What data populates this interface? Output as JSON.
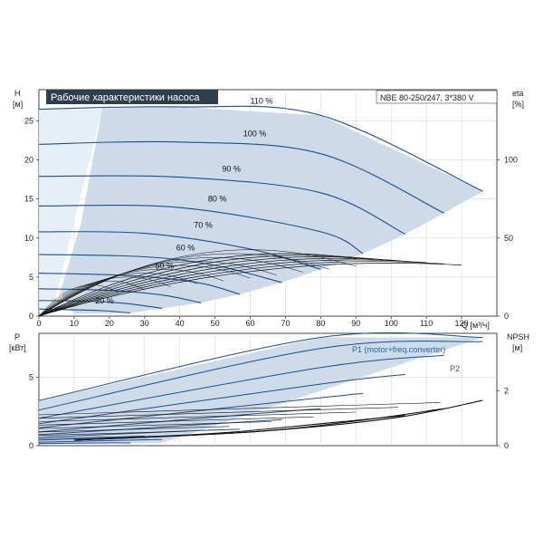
{
  "header": {
    "title": "Рабочие характеристики насоса",
    "model": "NBE 80-250/247, 3*380 V"
  },
  "colors": {
    "curve": "#1f4e8c",
    "band": "#c9d8e8",
    "band_light": "#e3edf7",
    "frame": "#444444",
    "title_bg": "#2f3e4f",
    "label": "#2a5ea8"
  },
  "chart_data": [
    {
      "type": "line",
      "name": "head",
      "xlabel": "Q [м³/ч]",
      "ylabel_line1": "H",
      "ylabel_line2": "[м]",
      "y2label_line1": "eta",
      "y2label_line2": "[%]",
      "xlim": [
        0,
        130
      ],
      "ylim": [
        0,
        29
      ],
      "y2lim": [
        0,
        145
      ],
      "xticks": [
        0,
        10,
        20,
        30,
        40,
        50,
        60,
        70,
        80,
        90,
        100,
        110,
        120
      ],
      "yticks": [
        0,
        5,
        10,
        15,
        20,
        25
      ],
      "y2ticks": [
        0,
        50,
        100
      ],
      "grid": true,
      "speed_curves": [
        {
          "label": "110 %",
          "label_xy": [
            60,
            27.2
          ],
          "x": [
            0,
            40,
            80,
            126
          ],
          "y": [
            26.5,
            26.8,
            25.7,
            16
          ]
        },
        {
          "label": "100 %",
          "label_xy": [
            58,
            23.0
          ],
          "x": [
            0,
            40,
            80,
            115
          ],
          "y": [
            22.0,
            22.3,
            20.8,
            13.2
          ]
        },
        {
          "label": "90 %",
          "label_xy": [
            52,
            18.5
          ],
          "x": [
            0,
            40,
            80,
            104
          ],
          "y": [
            17.9,
            17.8,
            15.8,
            10.5
          ]
        },
        {
          "label": "80 %",
          "label_xy": [
            48,
            14.7
          ],
          "x": [
            0,
            40,
            80,
            92
          ],
          "y": [
            14.1,
            13.9,
            10.8,
            8.0
          ]
        },
        {
          "label": "70 %",
          "label_xy": [
            44,
            11.3
          ],
          "x": [
            0,
            30,
            60,
            80
          ],
          "y": [
            10.8,
            10.6,
            8.6,
            6.0
          ]
        },
        {
          "label": "60 %",
          "label_xy": [
            39,
            8.4
          ],
          "x": [
            0,
            30,
            50,
            69
          ],
          "y": [
            7.9,
            7.6,
            6.5,
            4.3
          ]
        },
        {
          "label": "50 %",
          "label_xy": [
            33,
            6.1
          ],
          "x": [
            0,
            25,
            45,
            57
          ],
          "y": [
            5.5,
            5.2,
            4.3,
            2.8
          ]
        },
        {
          "label": "",
          "label_xy": null,
          "x": [
            0,
            20,
            35,
            46
          ],
          "y": [
            3.5,
            3.3,
            2.7,
            1.7
          ]
        },
        {
          "label": "",
          "label_xy": null,
          "x": [
            0,
            15,
            25,
            35
          ],
          "y": [
            2.0,
            1.9,
            1.6,
            1.0
          ]
        },
        {
          "label": "20 %",
          "label_xy": [
            16,
            1.6
          ],
          "x": [
            0,
            10,
            18,
            26
          ],
          "y": [
            0.9,
            0.8,
            0.7,
            0.4
          ]
        }
      ],
      "eta_curves_max": [
        {
          "peak_x": 70,
          "peak_eta": 40
        },
        {
          "peak_x": 75,
          "peak_eta": 39
        },
        {
          "peak_x": 80,
          "peak_eta": 38
        },
        {
          "peak_x": 85,
          "peak_eta": 37
        },
        {
          "peak_x": 90,
          "peak_eta": 36
        },
        {
          "peak_x": 95,
          "peak_eta": 35
        },
        {
          "peak_x": 100,
          "peak_eta": 34
        }
      ]
    },
    {
      "type": "line",
      "name": "power",
      "ylabel_line1": "P",
      "ylabel_line2": "[кВт]",
      "y2label_line1": "NPSH",
      "y2label_line2": "[м]",
      "xlim": [
        0,
        130
      ],
      "ylim": [
        0,
        8.2
      ],
      "y2lim": [
        0,
        4.1
      ],
      "yticks": [
        0,
        5
      ],
      "y2ticks": [
        0,
        2
      ],
      "series_labels": [
        "P1 (motor+freq.converter)",
        "P2"
      ],
      "power_curves": [
        {
          "x": [
            0,
            80,
            126
          ],
          "y": [
            3.3,
            7.9,
            7.9
          ]
        },
        {
          "x": [
            0,
            80,
            126
          ],
          "y": [
            2.6,
            7.1,
            7.6
          ]
        },
        {
          "x": [
            0,
            80,
            115
          ],
          "y": [
            2.0,
            5.7,
            6.6
          ]
        },
        {
          "x": [
            0,
            80,
            104
          ],
          "y": [
            1.6,
            4.5,
            5.2
          ]
        },
        {
          "x": [
            0,
            80,
            92
          ],
          "y": [
            1.3,
            3.5,
            3.8
          ]
        },
        {
          "x": [
            0,
            60,
            80
          ],
          "y": [
            1.0,
            2.3,
            2.7
          ]
        },
        {
          "x": [
            0,
            50,
            69
          ],
          "y": [
            0.8,
            1.6,
            1.9
          ]
        },
        {
          "x": [
            0,
            45,
            57
          ],
          "y": [
            0.6,
            1.1,
            1.2
          ]
        },
        {
          "x": [
            0,
            35,
            46
          ],
          "y": [
            0.4,
            0.7,
            0.8
          ]
        },
        {
          "x": [
            0,
            25,
            35
          ],
          "y": [
            0.25,
            0.4,
            0.45
          ]
        },
        {
          "x": [
            0,
            18,
            26
          ],
          "y": [
            0.15,
            0.2,
            0.2
          ]
        }
      ],
      "npsh_curves": [
        {
          "x": [
            10,
            60,
            100,
            126
          ],
          "y": [
            0.2,
            0.5,
            1.0,
            1.65
          ]
        },
        {
          "x": [
            10,
            60,
            90,
            115
          ],
          "y": [
            0.2,
            0.5,
            0.9,
            1.35
          ]
        },
        {
          "x": [
            10,
            50,
            80,
            104
          ],
          "y": [
            0.2,
            0.45,
            0.8,
            1.1
          ]
        }
      ]
    }
  ]
}
